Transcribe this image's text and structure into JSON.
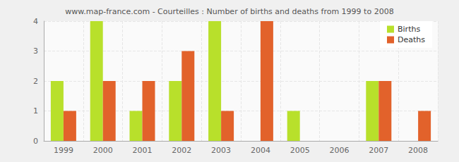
{
  "chart_data": {
    "type": "bar",
    "title": "www.map-france.com - Courteilles : Number of births and deaths from 1999 to 2008",
    "categories": [
      "1999",
      "2000",
      "2001",
      "2002",
      "2003",
      "2004",
      "2005",
      "2006",
      "2007",
      "2008"
    ],
    "series": [
      {
        "name": "Births",
        "color": "#b8e02b",
        "values": [
          2,
          4,
          1,
          2,
          4,
          0,
          1,
          0,
          2,
          0
        ]
      },
      {
        "name": "Deaths",
        "color": "#e2622b",
        "values": [
          1,
          2,
          2,
          3,
          1,
          4,
          0,
          0,
          2,
          1
        ]
      }
    ],
    "ylim": [
      0,
      4
    ],
    "yticks": [
      0,
      1,
      2,
      3,
      4
    ],
    "grid": true,
    "legend": "top-right"
  }
}
